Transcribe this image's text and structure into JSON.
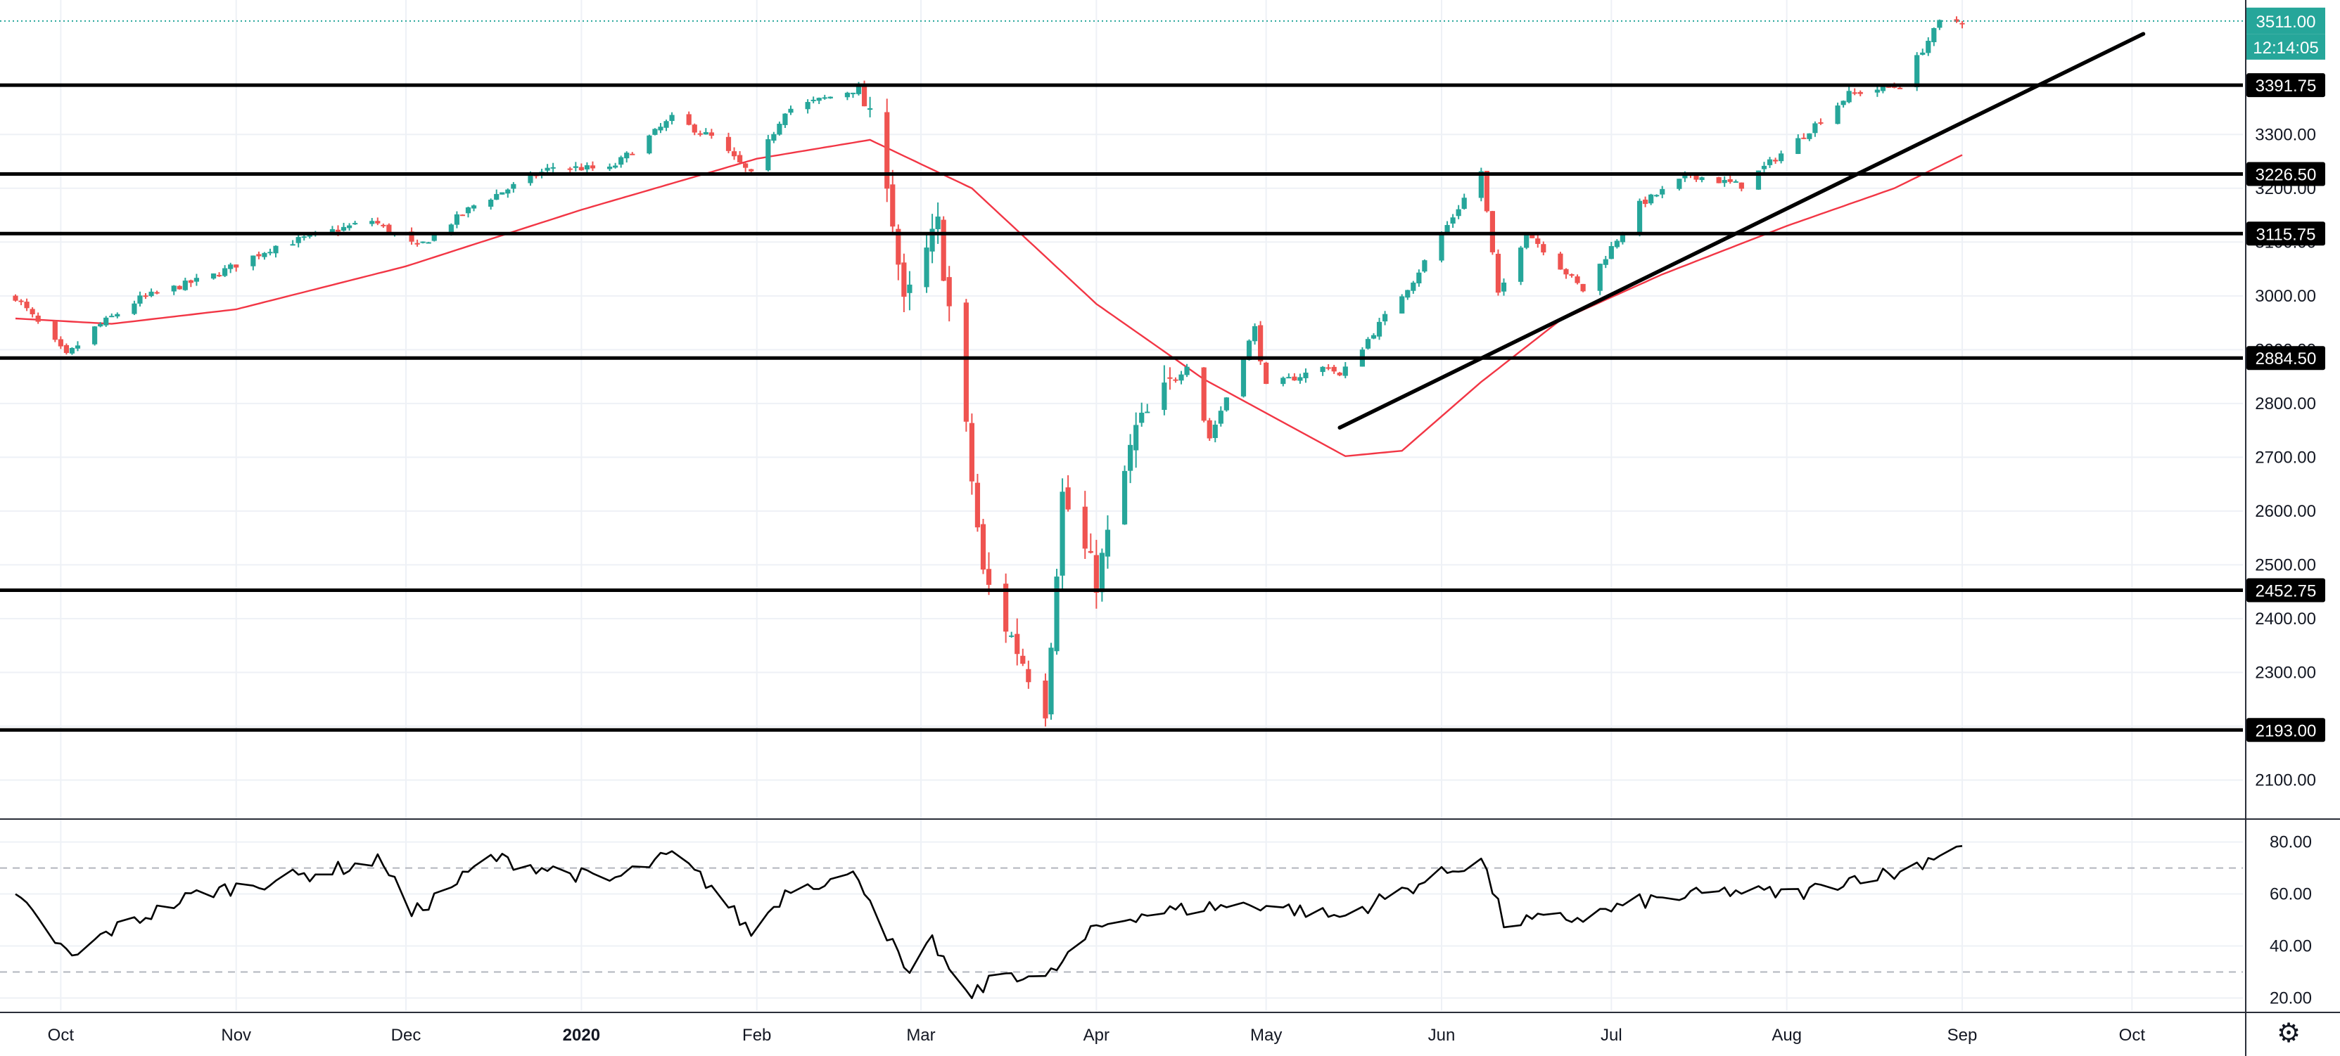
{
  "chart_data": {
    "type": "candlestick",
    "price_axis": {
      "ylim": [
        2030,
        3550
      ],
      "ticks": [
        2100,
        2200,
        2300,
        2400,
        2500,
        2600,
        2700,
        2800,
        2900,
        3000,
        3100,
        3200,
        3300
      ],
      "tick_labels": [
        "2100.00",
        "2200.00",
        "2300.00",
        "2400.00",
        "2500.00",
        "2600.00",
        "2700.00",
        "2800.00",
        "2900.00",
        "3000.00",
        "3100.00",
        "3200.00",
        "3300.00"
      ]
    },
    "last_price": {
      "value": 3511.0,
      "label": "3511.00",
      "countdown": "12:14:05",
      "color": "#26a69a"
    },
    "horizontal_levels": [
      {
        "value": 3391.75,
        "label": "3391.75"
      },
      {
        "value": 3226.5,
        "label": "3226.50"
      },
      {
        "value": 3115.75,
        "label": "3115.75"
      },
      {
        "value": 2884.5,
        "label": "2884.50"
      },
      {
        "value": 2452.75,
        "label": "2452.75"
      },
      {
        "value": 2193.0,
        "label": "2193.00"
      }
    ],
    "trendline": {
      "from": {
        "date": "2020-05-14",
        "value": 2755
      },
      "to": {
        "date": "2020-10-03",
        "value": 3487
      }
    },
    "time_axis": {
      "start": "2019-09-23",
      "end": "2020-10-31",
      "labels": [
        {
          "date": "2019-10-01",
          "label": "Oct"
        },
        {
          "date": "2019-11-01",
          "label": "Nov"
        },
        {
          "date": "2019-12-01",
          "label": "Dec"
        },
        {
          "date": "2020-01-01",
          "label": "2020"
        },
        {
          "date": "2020-02-01",
          "label": "Feb"
        },
        {
          "date": "2020-03-01",
          "label": "Mar"
        },
        {
          "date": "2020-04-01",
          "label": "Apr"
        },
        {
          "date": "2020-05-01",
          "label": "May"
        },
        {
          "date": "2020-06-01",
          "label": "Jun"
        },
        {
          "date": "2020-07-01",
          "label": "Jul"
        },
        {
          "date": "2020-08-01",
          "label": "Aug"
        },
        {
          "date": "2020-09-01",
          "label": "Sep"
        },
        {
          "date": "2020-10-01",
          "label": "Oct"
        }
      ]
    },
    "price_path": [
      [
        "2019-09-23",
        2998
      ],
      [
        "2019-10-02",
        2888
      ],
      [
        "2019-10-07",
        2940
      ],
      [
        "2019-10-15",
        2995
      ],
      [
        "2019-10-28",
        3038
      ],
      [
        "2019-11-08",
        3093
      ],
      [
        "2019-11-25",
        3140
      ],
      [
        "2019-12-03",
        3090
      ],
      [
        "2019-12-13",
        3168
      ],
      [
        "2019-12-27",
        3240
      ],
      [
        "2020-01-06",
        3235
      ],
      [
        "2020-01-17",
        3330
      ],
      [
        "2020-01-24",
        3295
      ],
      [
        "2020-01-31",
        3225
      ],
      [
        "2020-02-06",
        3345
      ],
      [
        "2020-02-19",
        3386
      ],
      [
        "2020-02-24",
        3225
      ],
      [
        "2020-02-27",
        2978
      ],
      [
        "2020-03-04",
        3130
      ],
      [
        "2020-03-09",
        2746
      ],
      [
        "2020-03-12",
        2480
      ],
      [
        "2020-03-16",
        2386
      ],
      [
        "2020-03-23",
        2237
      ],
      [
        "2020-03-26",
        2630
      ],
      [
        "2020-04-01",
        2470
      ],
      [
        "2020-04-08",
        2750
      ],
      [
        "2020-04-17",
        2874
      ],
      [
        "2020-04-21",
        2736
      ],
      [
        "2020-04-29",
        2940
      ],
      [
        "2020-05-01",
        2830
      ],
      [
        "2020-05-12",
        2870
      ],
      [
        "2020-05-14",
        2850
      ],
      [
        "2020-05-27",
        3030
      ],
      [
        "2020-06-08",
        3232
      ],
      [
        "2020-06-11",
        3000
      ],
      [
        "2020-06-16",
        3120
      ],
      [
        "2020-06-26",
        3010
      ],
      [
        "2020-07-06",
        3170
      ],
      [
        "2020-07-15",
        3225
      ],
      [
        "2020-07-24",
        3205
      ],
      [
        "2020-08-03",
        3290
      ],
      [
        "2020-08-12",
        3375
      ],
      [
        "2020-08-21",
        3392
      ],
      [
        "2020-08-28",
        3508
      ],
      [
        "2020-09-01",
        3511
      ]
    ],
    "sma": {
      "color": "#f23645",
      "points": [
        [
          "2019-09-23",
          2958
        ],
        [
          "2019-10-10",
          2948
        ],
        [
          "2019-11-01",
          2975
        ],
        [
          "2019-12-01",
          3055
        ],
        [
          "2020-01-01",
          3160
        ],
        [
          "2020-02-01",
          3255
        ],
        [
          "2020-02-21",
          3290
        ],
        [
          "2020-03-10",
          3200
        ],
        [
          "2020-04-01",
          2985
        ],
        [
          "2020-04-20",
          2845
        ],
        [
          "2020-05-15",
          2702
        ],
        [
          "2020-05-25",
          2712
        ],
        [
          "2020-06-08",
          2840
        ],
        [
          "2020-06-22",
          2955
        ],
        [
          "2020-07-10",
          3040
        ],
        [
          "2020-08-01",
          3130
        ],
        [
          "2020-08-20",
          3200
        ],
        [
          "2020-09-01",
          3262
        ]
      ]
    },
    "rsi": {
      "ylim": [
        15,
        88
      ],
      "ticks": [
        20,
        40,
        60,
        80
      ],
      "tick_labels": [
        "20.00",
        "40.00",
        "60.00",
        "80.00"
      ],
      "bands": [
        30,
        70
      ],
      "points": [
        [
          "2019-09-23",
          59
        ],
        [
          "2019-10-03",
          35
        ],
        [
          "2019-10-09",
          45
        ],
        [
          "2019-10-25",
          60
        ],
        [
          "2019-11-15",
          68
        ],
        [
          "2019-11-27",
          73
        ],
        [
          "2019-12-02",
          52
        ],
        [
          "2019-12-16",
          74
        ],
        [
          "2020-01-06",
          65
        ],
        [
          "2020-01-17",
          75
        ],
        [
          "2020-01-24",
          63
        ],
        [
          "2020-01-31",
          45
        ],
        [
          "2020-02-07",
          63
        ],
        [
          "2020-02-19",
          67
        ],
        [
          "2020-02-28",
          27
        ],
        [
          "2020-03-03",
          42
        ],
        [
          "2020-03-09",
          20
        ],
        [
          "2020-03-16",
          30
        ],
        [
          "2020-03-23",
          27
        ],
        [
          "2020-04-01",
          47
        ],
        [
          "2020-04-08",
          52
        ],
        [
          "2020-04-20",
          55
        ],
        [
          "2020-05-01",
          56
        ],
        [
          "2020-05-14",
          51
        ],
        [
          "2020-06-08",
          74
        ],
        [
          "2020-06-12",
          49
        ],
        [
          "2020-06-26",
          51
        ],
        [
          "2020-07-06",
          57
        ],
        [
          "2020-07-22",
          61
        ],
        [
          "2020-08-03",
          60
        ],
        [
          "2020-08-14",
          67
        ],
        [
          "2020-08-21",
          68
        ],
        [
          "2020-08-31",
          79
        ],
        [
          "2020-09-01",
          78
        ]
      ]
    }
  },
  "ui": {
    "settings_icon": "gear-icon",
    "colors": {
      "up": "#26a69a",
      "down": "#ef5350",
      "level_line": "#000000",
      "trendline": "#000000",
      "grid": "#eef1f6"
    }
  }
}
